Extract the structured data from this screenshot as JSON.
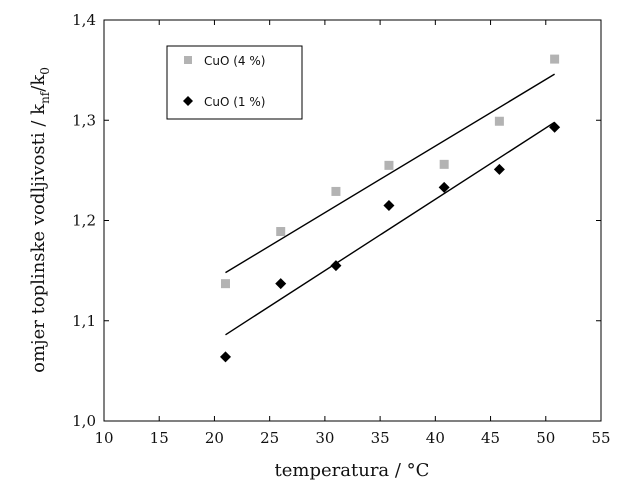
{
  "chart_data": {
    "type": "scatter",
    "xlabel": "temperatura / °C",
    "ylabel_main": "omjer toplinske vodljivosti / k",
    "ylabel_sub1": "nf",
    "ylabel_mid": "/k",
    "ylabel_sub2": "0",
    "xlim": [
      10,
      55
    ],
    "ylim": [
      1.0,
      1.4
    ],
    "x_ticks": [
      10,
      15,
      20,
      25,
      30,
      35,
      40,
      45,
      50,
      55
    ],
    "y_ticks": [
      1.0,
      1.1,
      1.2,
      1.3,
      1.4
    ],
    "x_tick_labels": [
      "10",
      "15",
      "20",
      "25",
      "30",
      "35",
      "40",
      "45",
      "50",
      "55"
    ],
    "y_tick_labels": [
      "1,0",
      "1,1",
      "1,2",
      "1,3",
      "1,4"
    ],
    "grid": false,
    "legend_position": "top-left",
    "series": [
      {
        "name": "CuO (4 %)",
        "marker": "square",
        "color": "#b3b3b3",
        "x": [
          21,
          26,
          31,
          35.8,
          40.8,
          45.8,
          50.8
        ],
        "y": [
          1.137,
          1.189,
          1.229,
          1.255,
          1.256,
          1.299,
          1.361
        ],
        "fit": {
          "x": [
            21,
            50.8
          ],
          "y": [
            1.148,
            1.346
          ]
        }
      },
      {
        "name": "CuO (1 %)",
        "marker": "diamond",
        "color": "#000000",
        "x": [
          21,
          26,
          31,
          35.8,
          40.8,
          45.8,
          50.8
        ],
        "y": [
          1.064,
          1.137,
          1.155,
          1.215,
          1.233,
          1.251,
          1.293
        ],
        "fit": {
          "x": [
            21,
            50.8
          ],
          "y": [
            1.086,
            1.298
          ]
        }
      }
    ]
  }
}
